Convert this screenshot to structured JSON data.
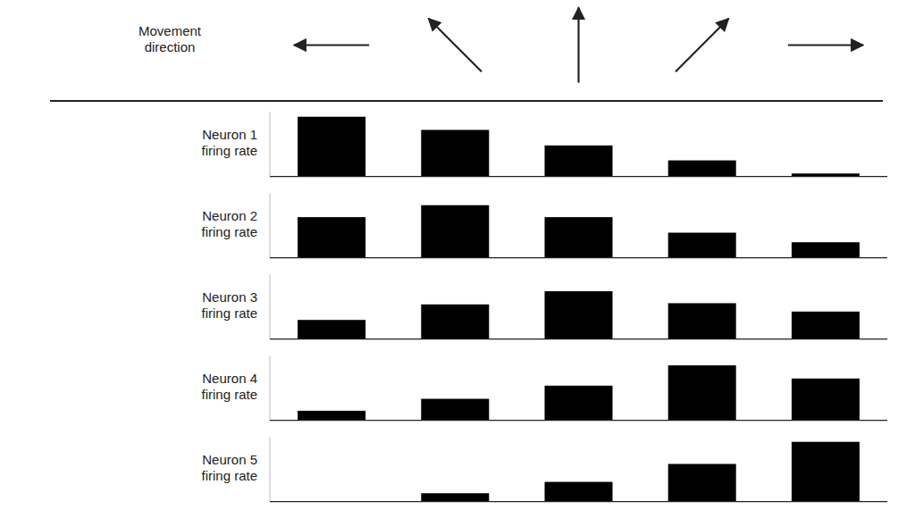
{
  "chart_data": {
    "type": "bar",
    "xlabel": "Movement\ndirection",
    "categories": [
      null,
      null,
      null,
      null,
      null
    ],
    "directions_deg": [
      180,
      135,
      90,
      45,
      0
    ],
    "series": [
      {
        "name": "Neuron 1\nfiring rate",
        "values": [
          1.0,
          0.78,
          0.52,
          0.27,
          0.05
        ]
      },
      {
        "name": "Neuron 2\nfiring rate",
        "values": [
          0.68,
          0.88,
          0.68,
          0.42,
          0.26
        ]
      },
      {
        "name": "Neuron 3\nfiring rate",
        "values": [
          0.32,
          0.58,
          0.8,
          0.6,
          0.46
        ]
      },
      {
        "name": "Neuron 4\nfiring rate",
        "values": [
          0.16,
          0.36,
          0.58,
          0.92,
          0.7
        ]
      },
      {
        "name": "Neuron 5\nfiring rate",
        "values": [
          0.0,
          0.14,
          0.33,
          0.63,
          1.0
        ]
      }
    ],
    "color": "#000000",
    "ylim": [
      0,
      1.08
    ],
    "tick_labels": false,
    "grid": false
  }
}
